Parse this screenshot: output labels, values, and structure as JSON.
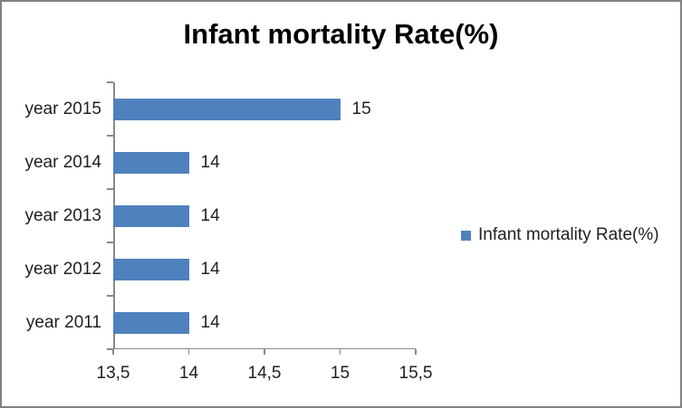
{
  "frame": {
    "background": "#ffffff",
    "border_color": "#808080"
  },
  "chart_data": {
    "type": "bar",
    "orientation": "horizontal",
    "title": "Infant mortality Rate(%)",
    "categories": [
      "year 2015",
      "year 2014",
      "year 2013",
      "year 2012",
      "year 2011"
    ],
    "values": [
      15,
      14,
      14,
      14,
      14
    ],
    "data_labels": [
      "15",
      "14",
      "14",
      "14",
      "14"
    ],
    "bar_color": "#4F81BD",
    "axis_color": "#898989",
    "text_color": "#212121",
    "x_axis": {
      "min": 13.5,
      "max": 15.5,
      "tick_interval": 0.5,
      "tick_labels": [
        "13,5",
        "14",
        "14,5",
        "15",
        "15,5"
      ]
    },
    "legend": {
      "label": "Infant mortality Rate(%)",
      "position": "right",
      "marker_color": "#4F81BD"
    },
    "grid": false,
    "data_labels_visible": true
  }
}
